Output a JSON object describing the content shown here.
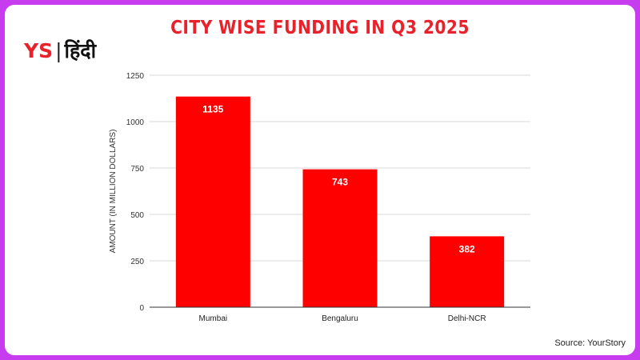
{
  "logo": {
    "brand": "YS",
    "separator": "|",
    "language": "हिंदी"
  },
  "source": "Source: YourStory",
  "colors": {
    "bar": "#ff0000",
    "title": "#e8212b",
    "frame": "#c83cf0"
  },
  "chart_data": {
    "type": "bar",
    "title": "CITY WISE FUNDING IN Q3 2025",
    "xlabel": "",
    "ylabel": "AMOUNT (IN MILLION DOLLARS)",
    "categories": [
      "Mumbai",
      "Bengaluru",
      "Delhi-NCR"
    ],
    "values": [
      1135,
      743,
      382
    ],
    "data_labels": [
      "1135",
      "743",
      "382"
    ],
    "ylim": [
      0,
      1250
    ],
    "yticks": [
      0,
      250,
      500,
      750,
      1000,
      1250
    ],
    "grid": true,
    "legend": "none"
  }
}
